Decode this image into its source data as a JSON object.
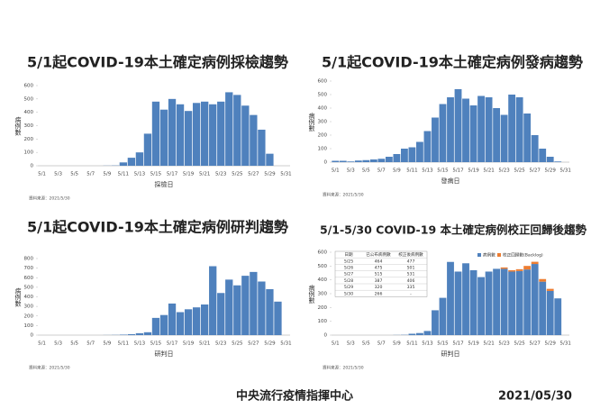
{
  "chart_data": [
    {
      "type": "bar",
      "title": "5/1起COVID-19本土確定病例採檢趨勢",
      "ylabel": "病例數",
      "xlabel": "採檢日",
      "note": "資料來源：2021/5/30",
      "color": "#4f81bd",
      "categories": [
        "5/1",
        null,
        "5/3",
        null,
        "5/5",
        null,
        "5/7",
        null,
        "5/9",
        null,
        "5/11",
        null,
        "5/13",
        null,
        "5/15",
        null,
        "5/17",
        null,
        "5/19",
        null,
        "5/21",
        null,
        "5/23",
        null,
        "5/25",
        null,
        "5/27",
        null,
        "5/29",
        null,
        "5/31"
      ],
      "values": [
        0,
        0,
        0,
        0,
        0,
        0,
        0,
        0,
        1,
        2,
        25,
        60,
        100,
        240,
        480,
        420,
        500,
        460,
        410,
        470,
        480,
        460,
        480,
        550,
        530,
        450,
        380,
        270,
        90,
        0,
        0
      ],
      "ylim": [
        0,
        600
      ],
      "yticks": [
        0,
        100,
        200,
        300,
        400,
        500,
        600
      ]
    },
    {
      "type": "bar",
      "title": "5/1起COVID-19本土確定病例發病趨勢",
      "ylabel": "病例數",
      "xlabel": "發病日",
      "note": "資料來源：2021/5/30",
      "color": "#4f81bd",
      "categories": [
        "5/1",
        null,
        "5/3",
        null,
        "5/5",
        null,
        "5/7",
        null,
        "5/9",
        null,
        "5/11",
        null,
        "5/13",
        null,
        "5/15",
        null,
        "5/17",
        null,
        "5/19",
        null,
        "5/21",
        null,
        "5/23",
        null,
        "5/25",
        null,
        "5/27",
        null,
        "5/29",
        null,
        "5/31"
      ],
      "values": [
        10,
        10,
        5,
        12,
        15,
        20,
        25,
        40,
        60,
        100,
        110,
        150,
        230,
        330,
        430,
        480,
        540,
        470,
        420,
        490,
        480,
        400,
        350,
        500,
        480,
        360,
        200,
        100,
        40,
        5,
        0
      ],
      "ylim": [
        0,
        600
      ],
      "yticks": [
        0,
        100,
        200,
        300,
        400,
        500,
        600
      ]
    },
    {
      "type": "bar",
      "title": "5/1起COVID-19本土確定病例研判趨勢",
      "ylabel": "病例數",
      "xlabel": "研判日",
      "note": "資料來源：2021/5/30",
      "color": "#4f81bd",
      "categories": [
        "5/1",
        null,
        "5/3",
        null,
        "5/5",
        null,
        "5/7",
        null,
        "5/9",
        null,
        "5/11",
        null,
        "5/13",
        null,
        "5/15",
        null,
        "5/17",
        null,
        "5/19",
        null,
        "5/21",
        null,
        "5/23",
        null,
        "5/25",
        null,
        "5/27",
        null,
        "5/29",
        null,
        "5/31"
      ],
      "values": [
        0,
        0,
        0,
        0,
        0,
        0,
        0,
        0,
        1,
        2,
        5,
        10,
        20,
        30,
        180,
        210,
        330,
        240,
        270,
        290,
        320,
        720,
        440,
        580,
        520,
        620,
        660,
        560,
        480,
        350,
        0
      ],
      "ylim": [
        0,
        800
      ],
      "yticks": [
        0,
        100,
        200,
        300,
        400,
        500,
        600,
        700,
        800
      ]
    },
    {
      "type": "stacked_bar",
      "title": "5/1-5/30 COVID-19 本土確定病例校正回歸後趨勢",
      "ylabel": "病例數",
      "xlabel": "研判日",
      "note": "資料來源：2021/5/30",
      "categories": [
        "5/1",
        null,
        "5/3",
        null,
        "5/5",
        null,
        "5/7",
        null,
        "5/9",
        null,
        "5/11",
        null,
        "5/13",
        null,
        "5/15",
        null,
        "5/17",
        null,
        "5/19",
        null,
        "5/21",
        null,
        "5/23",
        null,
        "5/25",
        null,
        "5/27",
        null,
        "5/29",
        null,
        "5/31"
      ],
      "series": [
        {
          "name": "病例數",
          "color": "#4f81bd",
          "values": [
            0,
            0,
            0,
            0,
            0,
            0,
            0,
            0,
            1,
            2,
            10,
            15,
            30,
            180,
            270,
            530,
            460,
            520,
            470,
            420,
            460,
            480,
            480,
            460,
            464,
            475,
            515,
            387,
            320,
            266,
            0
          ]
        },
        {
          "name": "校正回歸數(Backlog)",
          "color": "#ed7d31",
          "values": [
            0,
            0,
            0,
            0,
            0,
            0,
            0,
            0,
            0,
            0,
            0,
            0,
            0,
            0,
            0,
            0,
            0,
            0,
            0,
            0,
            0,
            0,
            10,
            10,
            13,
            26,
            16,
            19,
            15,
            0,
            0
          ]
        }
      ],
      "ylim": [
        0,
        600
      ],
      "yticks": [
        0,
        100,
        200,
        300,
        400,
        500,
        600
      ],
      "table": {
        "columns": [
          "日期",
          "已公布病例數",
          "校正後病例數"
        ],
        "rows": [
          [
            "5/25",
            464,
            477
          ],
          [
            "5/26",
            475,
            501
          ],
          [
            "5/27",
            515,
            531
          ],
          [
            "5/28",
            387,
            406
          ],
          [
            "5/29",
            320,
            335
          ],
          [
            "5/30",
            266,
            "-"
          ]
        ]
      }
    }
  ],
  "footer": {
    "org": "中央流行疫情指揮中心",
    "date": "2021/05/30"
  }
}
